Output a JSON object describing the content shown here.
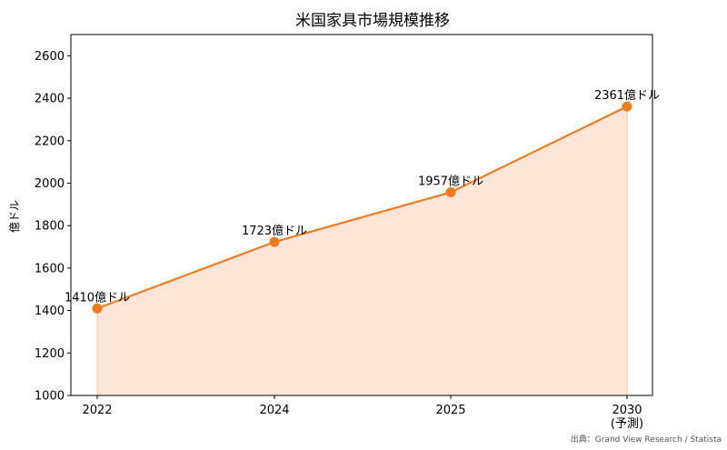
{
  "chart_data": {
    "type": "line",
    "title": "米国家具市場規模推移",
    "xlabel": "",
    "ylabel": "億ドル",
    "categories": [
      "2022",
      "2024",
      "2025",
      "2030"
    ],
    "category_sublabels": [
      "",
      "",
      "",
      "(予測)"
    ],
    "series": [
      {
        "values": [
          1410,
          1723,
          1957,
          2361
        ]
      }
    ],
    "data_labels": [
      "1410億ドル",
      "1723億ドル",
      "1957億ドル",
      "2361億ドル"
    ],
    "ylim": [
      1000,
      2700
    ],
    "yticks": [
      1000,
      1200,
      1400,
      1600,
      1800,
      2000,
      2200,
      2400,
      2600
    ],
    "grid": false,
    "area_fill": true,
    "line_color": "#f07a1f",
    "fill_color": "#fde6d8",
    "source": "出典：Grand View Research / Statista"
  }
}
